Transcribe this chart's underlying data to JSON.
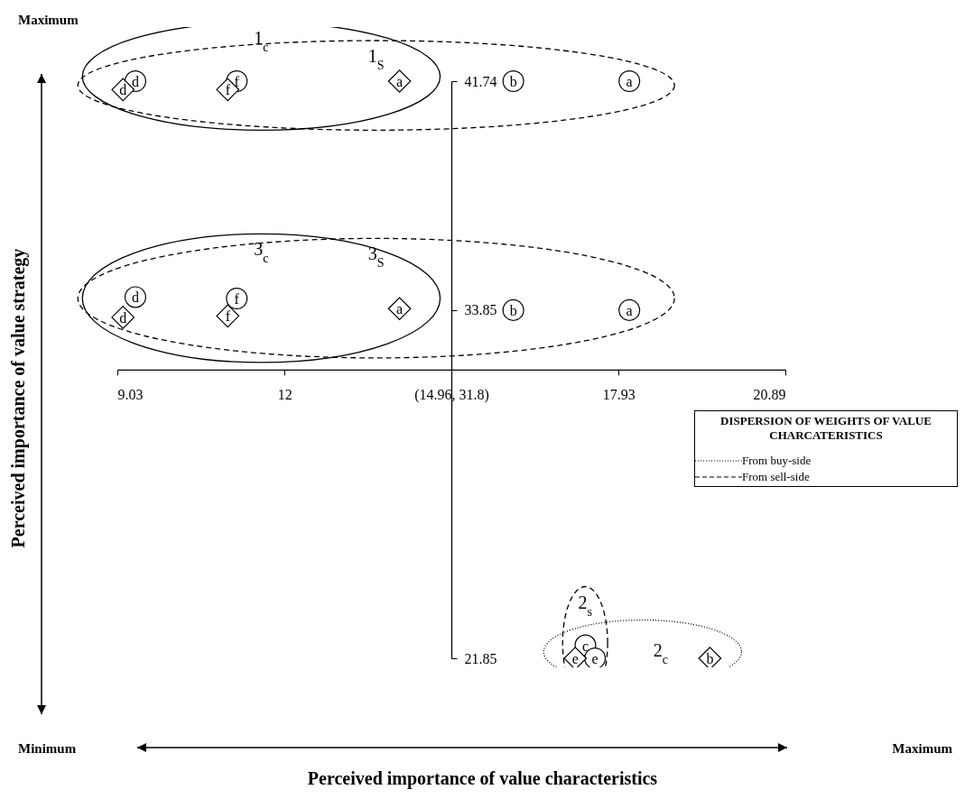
{
  "chart_data": {
    "type": "scatter",
    "ylabel": "Perceived importance of value strategy",
    "legend_title": "DISPERSION OF WEIGHTS OF VALUE CHARCATERISTICS",
    "xlim": [
      9.03,
      20.89
    ],
    "ylim": [
      21.85,
      41.74
    ],
    "xticks": [
      9.03,
      12,
      {
        "value": 14.96,
        "label": "(14.96, 31.8)"
      },
      17.93,
      20.89
    ],
    "yticks": [
      21.85,
      {
        "value": 31.8,
        "label": null
      },
      33.85,
      41.74
    ],
    "grid": false,
    "series": [
      {
        "marker": "circle",
        "color": "#000000",
        "x": [
          9.35,
          11.15,
          16.06,
          18.12,
          9.35,
          11.15,
          16.06,
          18.12,
          17.34,
          17.51
        ],
        "values": [
          41.74,
          41.74,
          41.74,
          41.74,
          34.3,
          34.25,
          33.85,
          33.85,
          22.3,
          21.85
        ],
        "value_labels": [
          "d",
          "f",
          "b",
          "a",
          "d",
          "f",
          "b",
          "a",
          "c",
          "e"
        ]
      },
      {
        "marker": "diamond",
        "color": "#000000",
        "x": [
          9.13,
          10.99,
          14.04,
          9.13,
          10.99,
          14.04,
          17.16,
          19.55
        ],
        "values": [
          41.45,
          41.45,
          41.74,
          33.6,
          33.65,
          33.9,
          21.85,
          21.85
        ],
        "value_labels": [
          "d",
          "f",
          "a",
          "d",
          "f",
          "a",
          "e",
          "b"
        ]
      }
    ],
    "annotations": [
      "Maximum",
      "Minimum",
      "Maximum",
      "From buy-side",
      "From sell-side",
      "1$_{c}$",
      "1$_{S}$",
      "3$_{c}$",
      "3$_{S}$",
      "2$_{s}$",
      "2$_{c}$",
      "Perceived importance of value characteristics"
    ]
  }
}
